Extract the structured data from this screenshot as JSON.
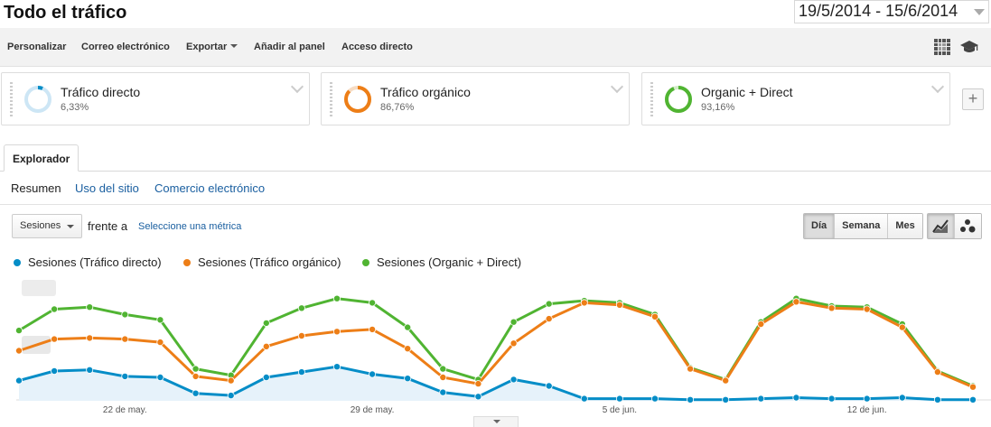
{
  "header": {
    "title": "Todo el tráfico",
    "date_range": "19/5/2014 - 15/6/2014"
  },
  "toolbar": {
    "items": [
      "Personalizar",
      "Correo electrónico",
      "Exportar",
      "Añadir al panel",
      "Acceso directo"
    ],
    "icons": [
      "grid-icon",
      "graduation-cap-icon"
    ]
  },
  "segments": [
    {
      "name": "Tráfico directo",
      "pct": "6,33%",
      "color": "#058dc7",
      "ring_bg": "#cde6f5",
      "fraction": 0.0633
    },
    {
      "name": "Tráfico orgánico",
      "pct": "86,76%",
      "color": "#ed7e17",
      "ring_bg": "#f6dcc4",
      "fraction": 0.8676
    },
    {
      "name": "Organic + Direct",
      "pct": "93,16%",
      "color": "#50b432",
      "ring_bg": "#d3ecc8",
      "fraction": 0.9316
    }
  ],
  "tabs": {
    "explorer": "Explorador"
  },
  "subnav": {
    "active": "Resumen",
    "links": [
      "Uso del sitio",
      "Comercio electrónico"
    ]
  },
  "controls": {
    "metric": "Sesiones",
    "versus": "frente a",
    "select_metric": "Seleccione una métrica",
    "granularity": [
      "Día",
      "Semana",
      "Mes"
    ],
    "granularity_selected": "Día"
  },
  "chart_data": {
    "type": "line",
    "x": [
      "19/5",
      "20/5",
      "21/5",
      "22/5",
      "23/5",
      "24/5",
      "25/5",
      "26/5",
      "27/5",
      "28/5",
      "29/5",
      "30/5",
      "31/5",
      "1/6",
      "2/6",
      "3/6",
      "4/6",
      "5/6",
      "6/6",
      "7/6",
      "8/6",
      "9/6",
      "10/6",
      "11/6",
      "12/6",
      "13/6",
      "14/6",
      "15/6"
    ],
    "tick_labels": [
      "22 de may.",
      "29 de may.",
      "5 de jun.",
      "12 de jun."
    ],
    "ylim": [
      0,
      100
    ],
    "series": [
      {
        "name": "Sesiones (Tráfico directo)",
        "color": "#058dc7",
        "values": [
          19,
          28,
          29,
          23,
          22,
          7,
          5,
          22,
          27,
          32,
          25,
          21,
          8,
          4,
          20,
          14,
          2,
          2,
          2,
          1,
          1,
          2,
          3,
          2,
          2,
          3,
          1,
          1
        ]
      },
      {
        "name": "Sesiones (Tráfico orgánico)",
        "color": "#ed7e17",
        "values": [
          47,
          58,
          59,
          58,
          55,
          23,
          19,
          51,
          61,
          65,
          67,
          49,
          22,
          16,
          54,
          77,
          92,
          90,
          79,
          30,
          19,
          72,
          93,
          87,
          86,
          69,
          27,
          13
        ]
      },
      {
        "name": "Sesiones (Organic + Direct)",
        "color": "#50b432",
        "values": [
          66,
          86,
          88,
          81,
          76,
          30,
          24,
          73,
          87,
          96,
          92,
          69,
          30,
          20,
          74,
          91,
          94,
          92,
          81,
          31,
          20,
          74,
          96,
          89,
          88,
          72,
          28,
          14
        ]
      }
    ]
  }
}
